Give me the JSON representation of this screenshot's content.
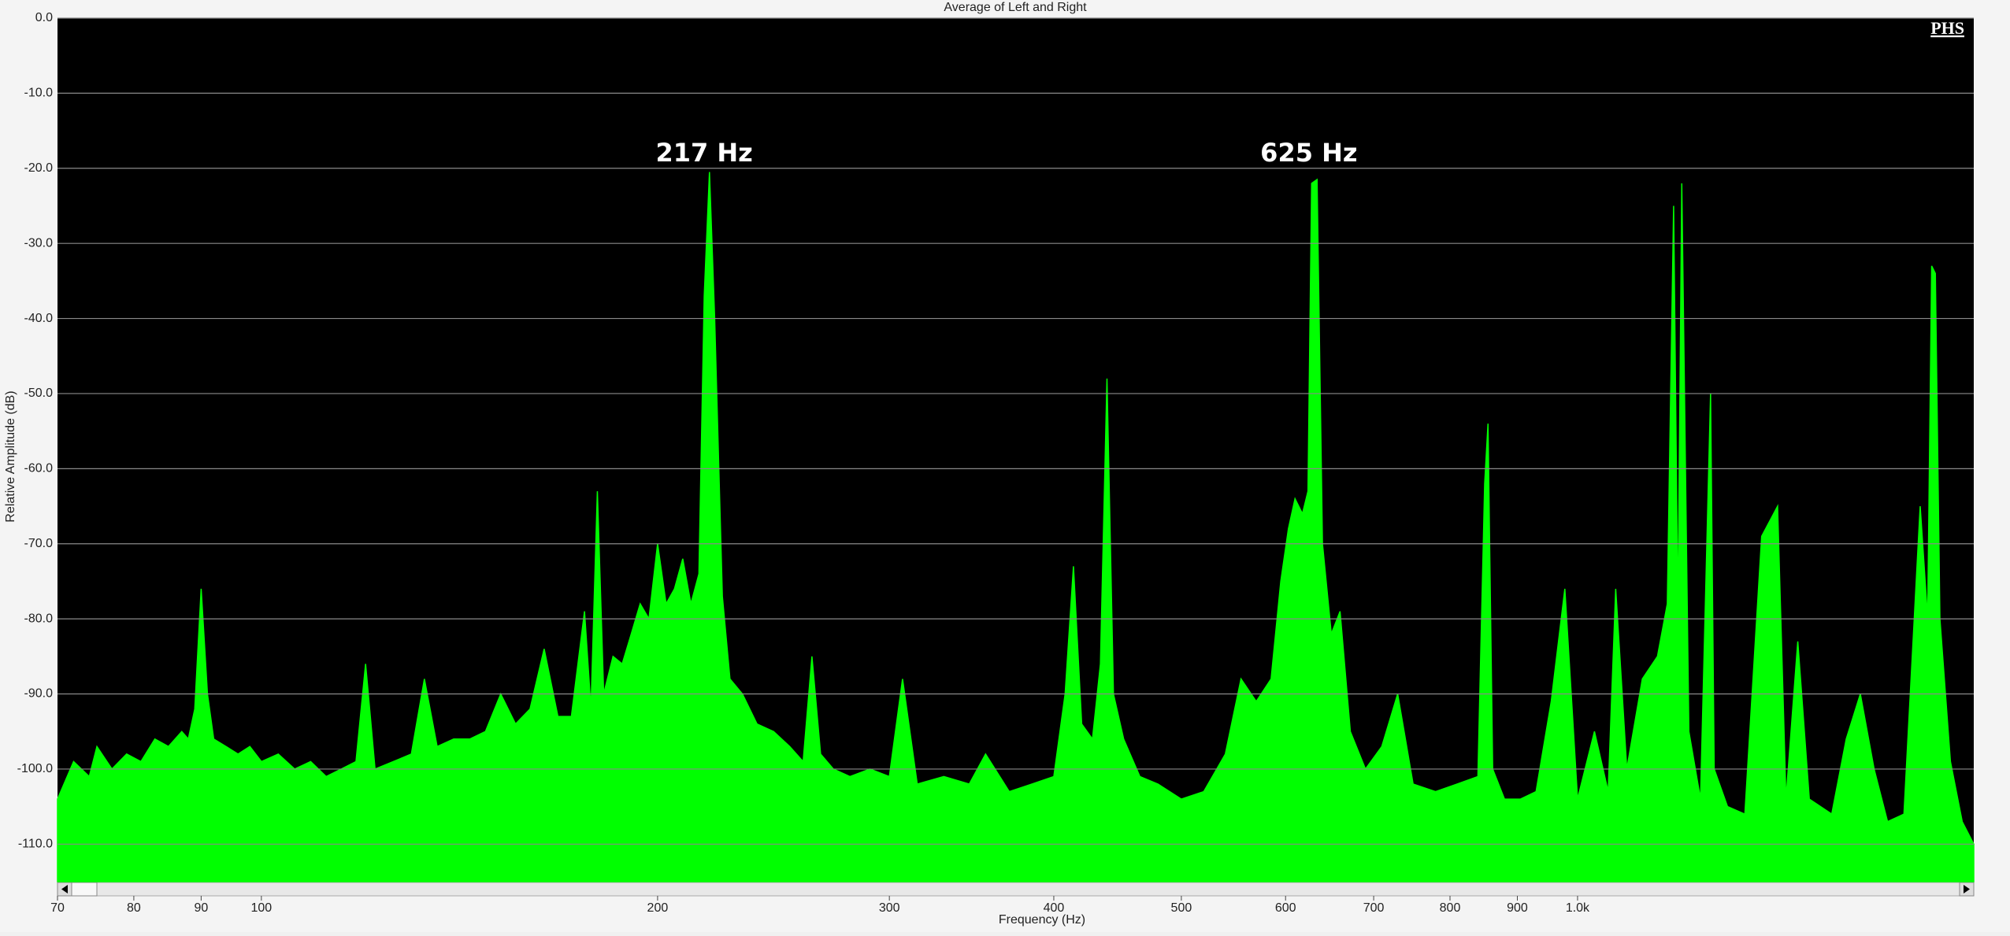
{
  "chart_data": {
    "type": "area",
    "title": "Average of Left and Right",
    "xlabel": "Frequency (Hz)",
    "ylabel": "Relative Amplitude (dB)",
    "logo": "PHS",
    "xscale": "log",
    "color": "#00ff00",
    "grid": true,
    "xlim": [
      70,
      2000
    ],
    "ylim": [
      -115,
      0
    ],
    "xticks": [
      70,
      80,
      90,
      100,
      200,
      300,
      400,
      500,
      600,
      700,
      800,
      900,
      {
        "value": 1000,
        "label": "1.0k"
      }
    ],
    "yticks": [
      {
        "value": 0,
        "label": "0.0"
      },
      {
        "value": -10,
        "label": "-10.0"
      },
      {
        "value": -20,
        "label": "-20.0"
      },
      {
        "value": -30,
        "label": "-30.0"
      },
      {
        "value": -40,
        "label": "-40.0"
      },
      {
        "value": -50,
        "label": "-50.0"
      },
      {
        "value": -60,
        "label": "-60.0"
      },
      {
        "value": -70,
        "label": "-70.0"
      },
      {
        "value": -80,
        "label": "-80.0"
      },
      {
        "value": -90,
        "label": "-90.0"
      },
      {
        "value": -100,
        "label": "-100.0"
      },
      {
        "value": -110,
        "label": "-110.0"
      }
    ],
    "annotations": [
      {
        "label": "217 Hz",
        "x": 217
      },
      {
        "label": "625 Hz",
        "x": 625
      }
    ],
    "x": [
      70,
      72,
      74,
      75,
      77,
      79,
      81,
      83,
      85,
      87,
      88,
      89,
      90,
      91,
      92,
      94,
      96,
      98,
      100,
      103,
      106,
      109,
      112,
      115,
      118,
      120,
      122,
      126,
      130,
      133,
      136,
      140,
      144,
      148,
      152,
      156,
      160,
      164,
      168,
      172,
      176,
      178,
      180,
      182,
      185,
      188,
      191,
      194,
      197,
      200,
      203,
      206,
      209,
      212,
      215,
      217,
      219,
      221,
      224,
      227,
      232,
      238,
      245,
      252,
      258,
      262,
      266,
      272,
      280,
      290,
      300,
      307,
      315,
      330,
      345,
      355,
      370,
      385,
      400,
      408,
      414,
      420,
      428,
      434,
      439,
      444,
      452,
      465,
      480,
      500,
      520,
      540,
      555,
      570,
      585,
      595,
      603,
      610,
      618,
      624,
      628,
      634,
      640,
      650,
      660,
      672,
      690,
      710,
      730,
      750,
      780,
      810,
      840,
      850,
      855,
      862,
      880,
      905,
      930,
      955,
      978,
      1000,
      1030,
      1055,
      1069,
      1090,
      1120,
      1150,
      1170,
      1183,
      1192,
      1200,
      1215,
      1240,
      1262,
      1270,
      1300,
      1340,
      1380,
      1419,
      1440,
      1470,
      1500,
      1560,
      1600,
      1640,
      1680,
      1720,
      1770,
      1821,
      1845,
      1858,
      1870,
      1885,
      1920,
      1960,
      2000
    ],
    "values": [
      -104,
      -99,
      -101,
      -97,
      -100,
      -98,
      -99,
      -96,
      -97,
      -95,
      -96,
      -92,
      -76,
      -90,
      -96,
      -97,
      -98,
      -97,
      -99,
      -98,
      -100,
      -99,
      -101,
      -100,
      -99,
      -86,
      -100,
      -99,
      -98,
      -88,
      -97,
      -96,
      -96,
      -95,
      -90,
      -94,
      -92,
      -84,
      -93,
      -93,
      -79,
      -92,
      -63,
      -90,
      -85,
      -86,
      -82,
      -78,
      -80,
      -70,
      -78,
      -76,
      -72,
      -78,
      -74,
      -37,
      -20.5,
      -40,
      -77,
      -88,
      -90,
      -94,
      -95,
      -97,
      -99,
      -85,
      -98,
      -100,
      -101,
      -100,
      -101,
      -88,
      -102,
      -101,
      -102,
      -98,
      -103,
      -102,
      -101,
      -90,
      -73,
      -94,
      -96,
      -86,
      -48,
      -90,
      -96,
      -101,
      -102,
      -104,
      -103,
      -98,
      -88,
      -91,
      -88,
      -75,
      -68,
      -64,
      -66,
      -63,
      -22,
      -21.5,
      -70,
      -82,
      -79,
      -95,
      -100,
      -97,
      -90,
      -102,
      -103,
      -102,
      -101,
      -62,
      -54,
      -100,
      -104,
      -104,
      -103,
      -91,
      -76,
      -104,
      -95,
      -103,
      -76,
      -100,
      -88,
      -85,
      -78,
      -25,
      -80,
      -22,
      -95,
      -104,
      -50,
      -100,
      -105,
      -106,
      -69,
      -65,
      -104,
      -83,
      -104,
      -106,
      -96,
      -90,
      -100,
      -107,
      -106,
      -65,
      -80,
      -33,
      -34,
      -80,
      -99,
      -107,
      -110
    ]
  }
}
